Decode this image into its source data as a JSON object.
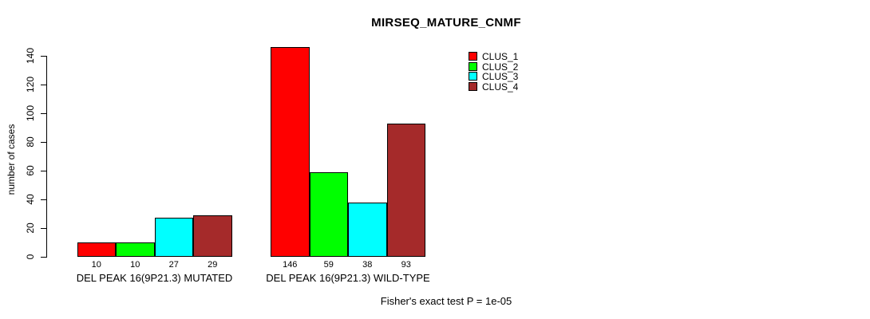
{
  "title": "MIRSEQ_MATURE_CNMF",
  "footer": {
    "note": "Fisher's exact test P = 1e-05"
  },
  "chart_data": {
    "type": "bar",
    "title": "MIRSEQ_MATURE_CNMF",
    "xlabel": "",
    "ylabel": "number of cases",
    "ylim": [
      0,
      140
    ],
    "yticks": [
      0,
      20,
      40,
      60,
      80,
      100,
      120,
      140
    ],
    "grid": false,
    "legend_position": "top-right",
    "bar_value_labels_shown": true,
    "categories": [
      "DEL PEAK 16(9P21.3) MUTATED",
      "DEL PEAK 16(9P21.3) WILD-TYPE"
    ],
    "series": [
      {
        "name": "CLUS_1",
        "color": "#FF0000",
        "values": [
          10,
          146
        ]
      },
      {
        "name": "CLUS_2",
        "color": "#00FF00",
        "values": [
          10,
          59
        ]
      },
      {
        "name": "CLUS_3",
        "color": "#00FFFF",
        "values": [
          27,
          38
        ]
      },
      {
        "name": "CLUS_4",
        "color": "#A52A2A",
        "values": [
          29,
          93
        ]
      }
    ],
    "annotation": "Fisher's exact test P = 1e-05"
  }
}
